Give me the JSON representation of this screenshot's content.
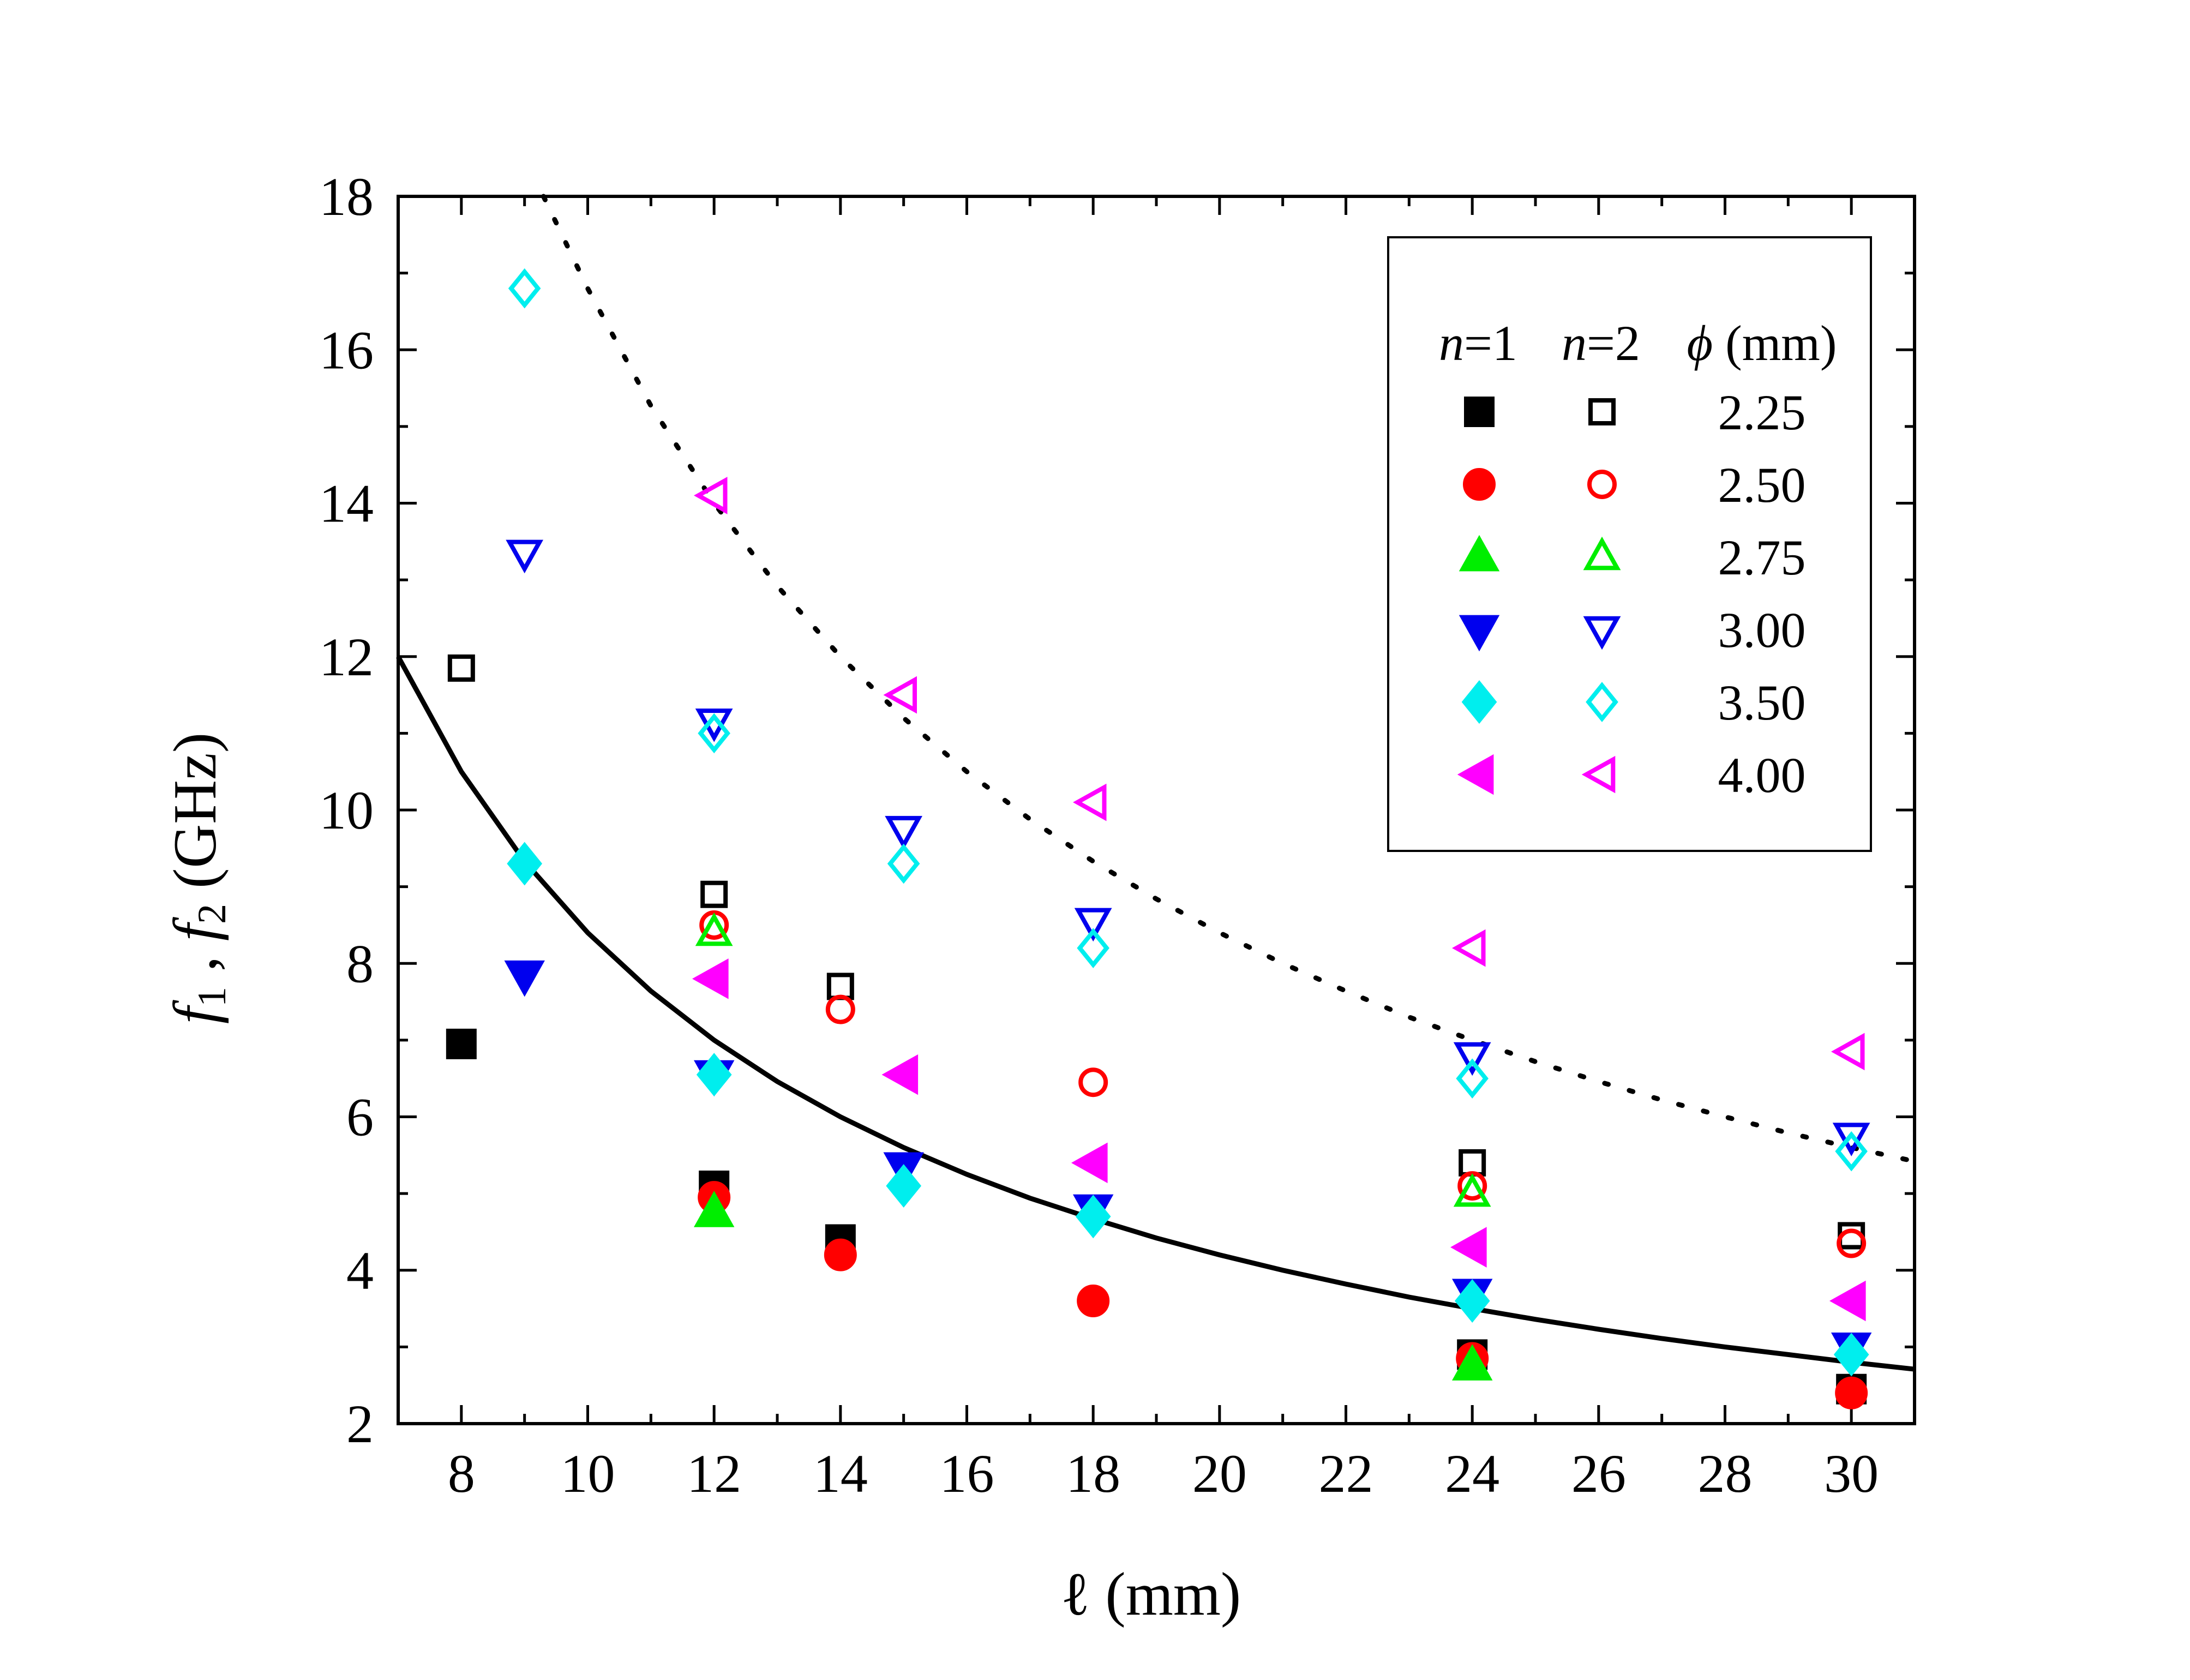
{
  "chart_data": {
    "type": "scatter",
    "title": "",
    "xlabel": "ℓ (mm)",
    "ylabel_parts": [
      "f",
      "1",
      " , ",
      "f",
      "2",
      " (GHz)"
    ],
    "xlim": [
      7,
      31
    ],
    "ylim": [
      2,
      18
    ],
    "xticks": [
      8,
      10,
      12,
      14,
      16,
      18,
      20,
      22,
      24,
      26,
      28,
      30
    ],
    "yticks": [
      2,
      4,
      6,
      8,
      10,
      12,
      14,
      16,
      18
    ],
    "grid": false,
    "legend": {
      "position": "top-right",
      "headers": [
        "n=1",
        "n=2",
        "ϕ (mm)"
      ],
      "header_parts": [
        {
          "var": "n",
          "rest": "=1"
        },
        {
          "var": "n",
          "rest": "=2"
        },
        {
          "var": "ϕ",
          "rest": " (mm)"
        }
      ]
    },
    "series": [
      {
        "name": "2.25",
        "color": "#000000",
        "marker": "square",
        "n1": {
          "x": [
            8,
            12,
            14,
            24,
            30
          ],
          "y": [
            6.95,
            5.1,
            4.4,
            2.9,
            2.45
          ]
        },
        "n2": {
          "x": [
            8,
            12,
            14,
            24,
            30
          ],
          "y": [
            11.85,
            8.9,
            7.7,
            5.4,
            4.45
          ]
        }
      },
      {
        "name": "2.50",
        "color": "#ff0000",
        "marker": "circle",
        "n1": {
          "x": [
            12,
            14,
            18,
            24,
            30
          ],
          "y": [
            4.95,
            4.2,
            3.6,
            2.85,
            2.4
          ]
        },
        "n2": {
          "x": [
            12,
            14,
            18,
            24,
            30
          ],
          "y": [
            8.5,
            7.4,
            6.45,
            5.1,
            4.35
          ]
        }
      },
      {
        "name": "2.75",
        "color": "#00ee00",
        "marker": "triangle-up",
        "n1": {
          "x": [
            12,
            24
          ],
          "y": [
            4.75,
            2.75
          ]
        },
        "n2": {
          "x": [
            12,
            24
          ],
          "y": [
            8.4,
            5.0
          ]
        }
      },
      {
        "name": "3.00",
        "color": "#0000ee",
        "marker": "triangle-down",
        "n1": {
          "x": [
            9,
            12,
            15,
            18,
            24,
            30
          ],
          "y": [
            7.85,
            6.55,
            5.35,
            4.8,
            3.7,
            3.0
          ]
        },
        "n2": {
          "x": [
            9,
            12,
            15,
            18,
            24,
            30
          ],
          "y": [
            13.35,
            11.15,
            9.75,
            8.55,
            6.8,
            5.75
          ]
        }
      },
      {
        "name": "3.50",
        "color": "#00eeee",
        "marker": "diamond",
        "n1": {
          "x": [
            9,
            12,
            15,
            18,
            24,
            30
          ],
          "y": [
            9.3,
            6.55,
            5.1,
            4.7,
            3.6,
            2.9
          ]
        },
        "n2": {
          "x": [
            9,
            12,
            15,
            18,
            24,
            30
          ],
          "y": [
            16.8,
            11.0,
            9.3,
            8.2,
            6.5,
            5.55
          ]
        }
      },
      {
        "name": "4.00",
        "color": "#ff00ff",
        "marker": "triangle-left",
        "n1": {
          "x": [
            12,
            15,
            18,
            24,
            30
          ],
          "y": [
            7.8,
            6.55,
            5.4,
            4.3,
            3.6
          ]
        },
        "n2": {
          "x": [
            12,
            15,
            18,
            24,
            30
          ],
          "y": [
            14.1,
            11.5,
            10.1,
            8.2,
            6.85
          ]
        }
      }
    ],
    "curves": [
      {
        "name": "fit-n1",
        "style": "solid",
        "color": "#000000",
        "x": [
          7,
          8,
          9,
          10,
          11,
          12,
          13,
          14,
          15,
          16,
          17,
          18,
          19,
          20,
          21,
          22,
          23,
          24,
          25,
          26,
          27,
          28,
          29,
          30,
          31
        ],
        "y": [
          12.0,
          10.5,
          9.33,
          8.4,
          7.64,
          7.0,
          6.46,
          6.0,
          5.6,
          5.25,
          4.94,
          4.67,
          4.42,
          4.2,
          4.0,
          3.82,
          3.65,
          3.5,
          3.36,
          3.23,
          3.11,
          3.0,
          2.9,
          2.8,
          2.71
        ]
      },
      {
        "name": "fit-n2",
        "style": "dotted",
        "color": "#000000",
        "x": [
          9.3,
          10,
          11,
          12,
          13,
          14,
          15,
          16,
          17,
          18,
          19,
          20,
          21,
          22,
          23,
          24,
          25,
          26,
          27,
          28,
          29,
          30,
          31
        ],
        "y": [
          18.0,
          16.8,
          15.27,
          14.0,
          12.92,
          12.0,
          11.2,
          10.5,
          9.88,
          9.33,
          8.84,
          8.4,
          8.0,
          7.64,
          7.3,
          7.0,
          6.72,
          6.46,
          6.22,
          6.0,
          5.79,
          5.6,
          5.42
        ]
      }
    ]
  }
}
